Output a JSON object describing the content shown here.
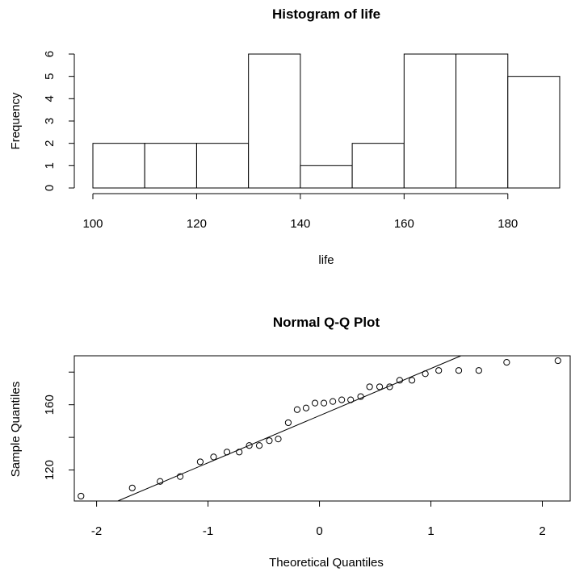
{
  "chart_data": [
    {
      "type": "bar",
      "title": "Histogram of life",
      "xlabel": "life",
      "ylabel": "Frequency",
      "bins": [
        {
          "from": 100,
          "to": 110,
          "count": 2
        },
        {
          "from": 110,
          "to": 120,
          "count": 2
        },
        {
          "from": 120,
          "to": 130,
          "count": 2
        },
        {
          "from": 130,
          "to": 140,
          "count": 6
        },
        {
          "from": 140,
          "to": 150,
          "count": 1
        },
        {
          "from": 150,
          "to": 160,
          "count": 2
        },
        {
          "from": 160,
          "to": 170,
          "count": 6
        },
        {
          "from": 170,
          "to": 180,
          "count": 6
        },
        {
          "from": 180,
          "to": 190,
          "count": 5
        }
      ],
      "xlim": [
        100,
        190
      ],
      "ylim": [
        0,
        6
      ],
      "x_ticks": [
        100,
        120,
        140,
        160,
        180
      ],
      "y_ticks": [
        0,
        1,
        2,
        3,
        4,
        5,
        6
      ]
    },
    {
      "type": "scatter",
      "title": "Normal Q-Q Plot",
      "xlabel": "Theoretical Quantiles",
      "ylabel": "Sample Quantiles",
      "xlim": [
        -2.2,
        2.25
      ],
      "ylim": [
        101,
        190
      ],
      "x_ticks": [
        -2,
        -1,
        0,
        1,
        2
      ],
      "y_ticks": [
        120,
        160
      ],
      "points": [
        {
          "x": -2.14,
          "y": 104
        },
        {
          "x": -1.68,
          "y": 109
        },
        {
          "x": -1.43,
          "y": 113
        },
        {
          "x": -1.25,
          "y": 116
        },
        {
          "x": -1.07,
          "y": 125
        },
        {
          "x": -0.95,
          "y": 128
        },
        {
          "x": -0.83,
          "y": 131
        },
        {
          "x": -0.72,
          "y": 131
        },
        {
          "x": -0.63,
          "y": 135
        },
        {
          "x": -0.54,
          "y": 135
        },
        {
          "x": -0.45,
          "y": 138
        },
        {
          "x": -0.37,
          "y": 139
        },
        {
          "x": -0.28,
          "y": 149
        },
        {
          "x": -0.2,
          "y": 157
        },
        {
          "x": -0.12,
          "y": 158
        },
        {
          "x": -0.04,
          "y": 161
        },
        {
          "x": 0.04,
          "y": 161
        },
        {
          "x": 0.12,
          "y": 162
        },
        {
          "x": 0.2,
          "y": 163
        },
        {
          "x": 0.28,
          "y": 163
        },
        {
          "x": 0.37,
          "y": 165
        },
        {
          "x": 0.45,
          "y": 171
        },
        {
          "x": 0.54,
          "y": 171
        },
        {
          "x": 0.63,
          "y": 171
        },
        {
          "x": 0.72,
          "y": 175
        },
        {
          "x": 0.83,
          "y": 175
        },
        {
          "x": 0.95,
          "y": 179
        },
        {
          "x": 1.07,
          "y": 181
        },
        {
          "x": 1.25,
          "y": 181
        },
        {
          "x": 1.43,
          "y": 181
        },
        {
          "x": 1.68,
          "y": 186
        },
        {
          "x": 2.14,
          "y": 187
        }
      ],
      "reference_line": {
        "x": [
          -1.81,
          1.27
        ],
        "y": [
          101,
          190
        ]
      }
    }
  ]
}
